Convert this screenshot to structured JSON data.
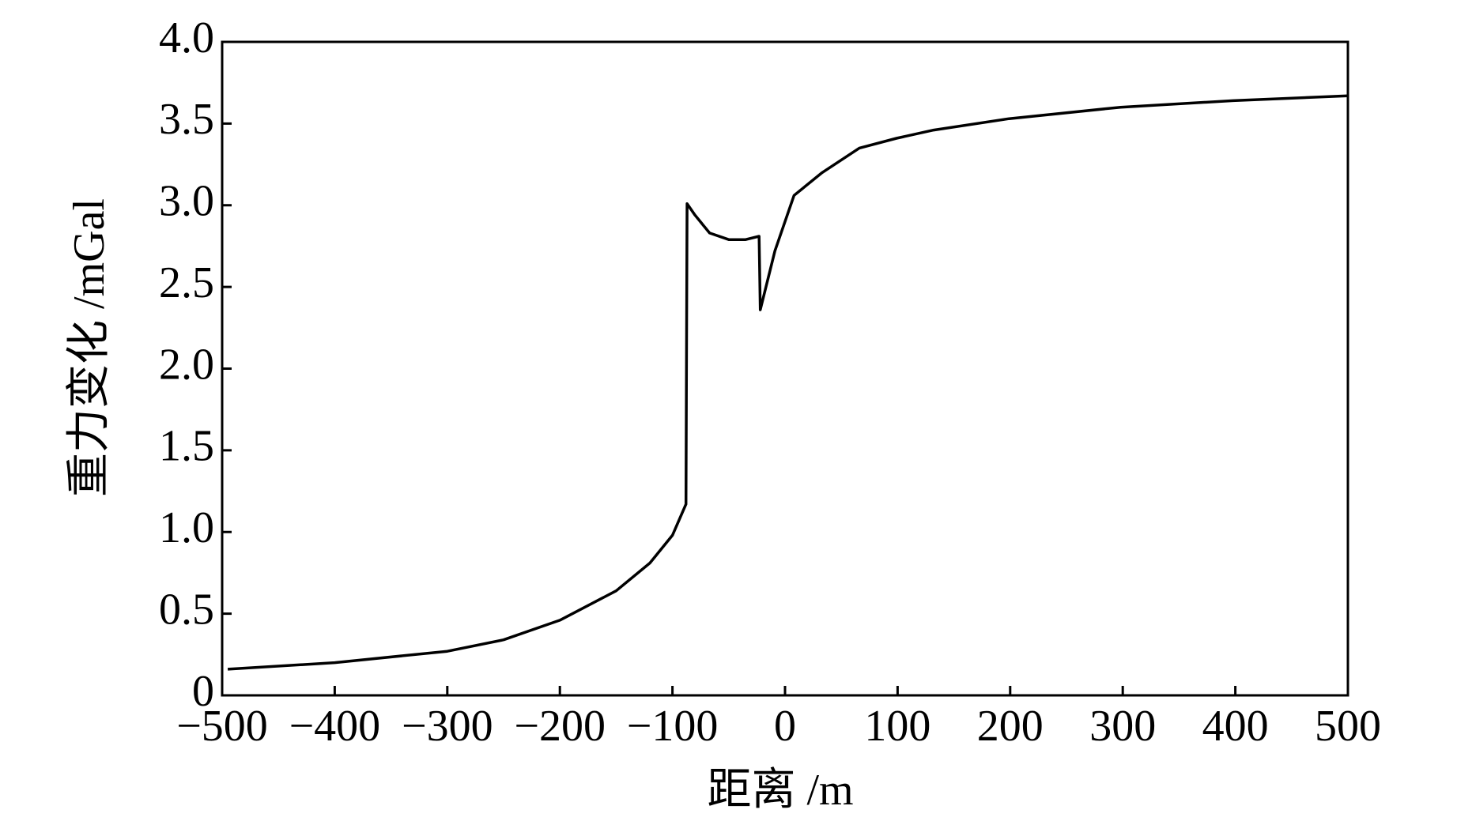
{
  "chart_data": {
    "type": "line",
    "xlabel": "距离 /m",
    "ylabel": "重力变化 /mGal",
    "x": [
      -495,
      -400,
      -300,
      -250,
      -200,
      -150,
      -120,
      -100,
      -88,
      -87,
      -80,
      -67,
      -50,
      -35,
      -23,
      -22,
      -9,
      8,
      33,
      66,
      99,
      132,
      199,
      298,
      398,
      500
    ],
    "values": [
      0.16,
      0.2,
      0.27,
      0.34,
      0.46,
      0.64,
      0.81,
      0.98,
      1.17,
      3.01,
      2.94,
      2.83,
      2.79,
      2.79,
      2.81,
      2.36,
      2.72,
      3.06,
      3.2,
      3.35,
      3.41,
      3.46,
      3.53,
      3.6,
      3.64,
      3.67
    ],
    "color": "#000000",
    "xlim": [
      -500,
      500
    ],
    "xticks": [
      {
        "value": -500,
        "label": "−500"
      },
      {
        "value": -400,
        "label": "−400"
      },
      {
        "value": -300,
        "label": "−300"
      },
      {
        "value": -200,
        "label": "−200"
      },
      {
        "value": -100,
        "label": "−100"
      },
      0,
      100,
      200,
      300,
      400,
      500
    ],
    "ylim": [
      0,
      4
    ],
    "yticks": [
      0,
      0.5,
      {
        "value": 1,
        "label": "1.0"
      },
      1.5,
      {
        "value": 2,
        "label": "2.0"
      },
      2.5,
      {
        "value": 3,
        "label": "3.0"
      },
      3.5,
      {
        "value": 4,
        "label": "4.0"
      }
    ],
    "grid": false
  }
}
